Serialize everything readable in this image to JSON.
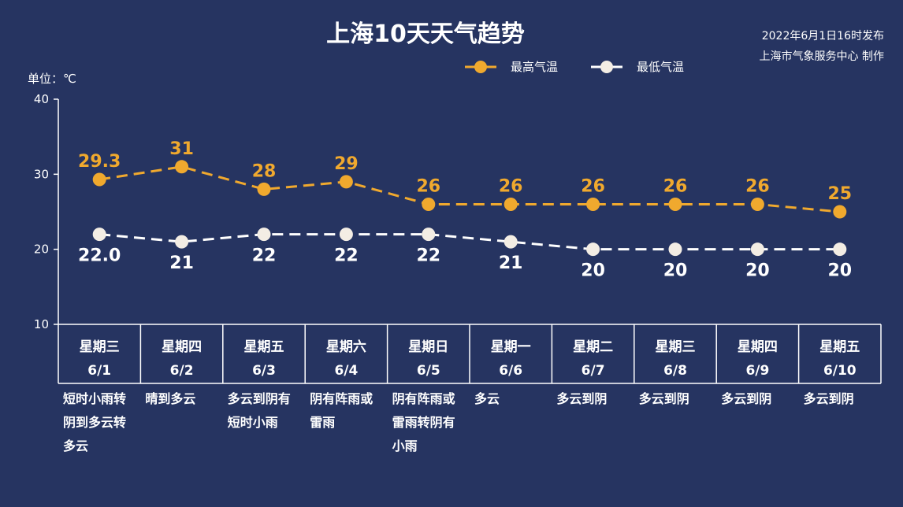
{
  "header": {
    "title": "上海10天天气趋势",
    "issued": "2022年6月1日16时发布",
    "producer": "上海市气象服务中心 制作"
  },
  "colors": {
    "background": "#263461",
    "high": "#f0a92e",
    "low": "#ffffff"
  },
  "chart_data": {
    "type": "line",
    "title": "上海10天天气趋势",
    "unit_label": "单位：℃",
    "ylim": [
      10,
      40
    ],
    "yticks": [
      10,
      20,
      30,
      40
    ],
    "grid": false,
    "legend_position": "top-right",
    "categories": [
      "6/1",
      "6/2",
      "6/3",
      "6/4",
      "6/5",
      "6/6",
      "6/7",
      "6/8",
      "6/9",
      "6/10"
    ],
    "weekdays": [
      "星期三",
      "星期四",
      "星期五",
      "星期六",
      "星期日",
      "星期一",
      "星期二",
      "星期三",
      "星期四",
      "星期五"
    ],
    "weather": [
      [
        "短时小雨转",
        "阴到多云转",
        "多云"
      ],
      [
        "晴到多云"
      ],
      [
        "多云到阴有",
        "短时小雨"
      ],
      [
        "阴有阵雨或",
        "雷雨"
      ],
      [
        "阴有阵雨或",
        "雷雨转阴有",
        "小雨"
      ],
      [
        "多云"
      ],
      [
        "多云到阴"
      ],
      [
        "多云到阴"
      ],
      [
        "多云到阴"
      ],
      [
        "多云到阴"
      ]
    ],
    "series": [
      {
        "name": "最高气温",
        "values": [
          29.3,
          31,
          28,
          29,
          26,
          26,
          26,
          26,
          26,
          25
        ],
        "labels": [
          "29.3",
          "31",
          "28",
          "29",
          "26",
          "26",
          "26",
          "26",
          "26",
          "25"
        ]
      },
      {
        "name": "最低气温",
        "values": [
          22.0,
          21,
          22,
          22,
          22,
          21,
          20,
          20,
          20,
          20
        ],
        "labels": [
          "22.0",
          "21",
          "22",
          "22",
          "22",
          "21",
          "20",
          "20",
          "20",
          "20"
        ]
      }
    ]
  }
}
